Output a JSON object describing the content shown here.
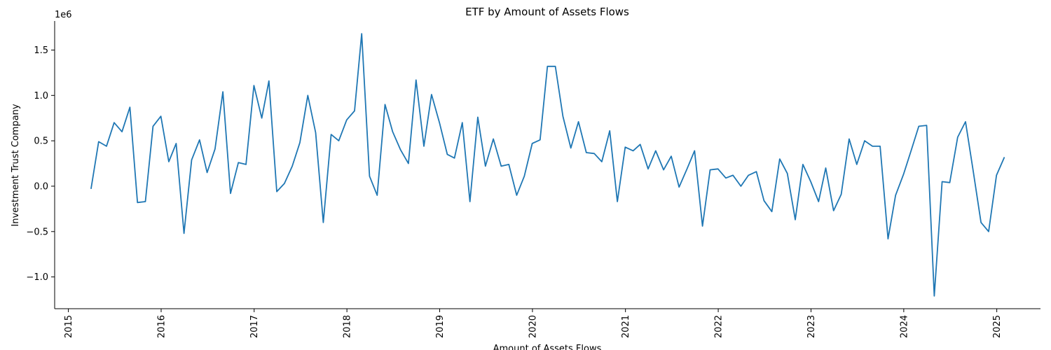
{
  "chart_data": {
    "type": "line",
    "title": "ETF by Amount of Assets Flows",
    "xlabel": "Amount of Assets Flows",
    "ylabel": "Investment Trust Company",
    "y_offset_label": "1e6",
    "x_ticks": [
      "2015",
      "2016",
      "2017",
      "2018",
      "2019",
      "2020",
      "2021",
      "2022",
      "2023",
      "2024",
      "2025"
    ],
    "y_ticks": [
      -1.0,
      -0.5,
      0.0,
      0.5,
      1.0,
      1.5
    ],
    "y_tick_labels": [
      "−1.0",
      "−0.5",
      "0.0",
      "0.5",
      "1.0",
      "1.5"
    ],
    "xlim": [
      "2014-11-08",
      "2025-06-22"
    ],
    "ylim": [
      -1.35,
      1.82
    ],
    "y_unit_multiplier": 1000000,
    "grid": false,
    "series": [
      {
        "color": "#1f77b4",
        "x": [
          "2015-03-31",
          "2015-04-30",
          "2015-05-31",
          "2015-06-30",
          "2015-07-31",
          "2015-08-31",
          "2015-09-30",
          "2015-10-31",
          "2015-11-30",
          "2015-12-31",
          "2016-01-31",
          "2016-02-29",
          "2016-03-31",
          "2016-04-30",
          "2016-05-31",
          "2016-06-30",
          "2016-07-31",
          "2016-08-31",
          "2016-09-30",
          "2016-10-31",
          "2016-11-30",
          "2016-12-31",
          "2017-01-31",
          "2017-02-28",
          "2017-03-31",
          "2017-04-30",
          "2017-05-31",
          "2017-06-30",
          "2017-07-31",
          "2017-08-31",
          "2017-09-30",
          "2017-10-31",
          "2017-11-30",
          "2017-12-31",
          "2018-01-31",
          "2018-02-28",
          "2018-03-31",
          "2018-04-30",
          "2018-05-31",
          "2018-06-30",
          "2018-07-31",
          "2018-08-31",
          "2018-09-30",
          "2018-10-31",
          "2018-11-30",
          "2018-12-31",
          "2019-01-31",
          "2019-02-28",
          "2019-03-31",
          "2019-04-30",
          "2019-05-31",
          "2019-06-30",
          "2019-07-31",
          "2019-08-31",
          "2019-09-30",
          "2019-10-31",
          "2019-11-30",
          "2019-12-31",
          "2020-01-31",
          "2020-02-29",
          "2020-03-31",
          "2020-04-30",
          "2020-05-31",
          "2020-06-30",
          "2020-07-31",
          "2020-08-31",
          "2020-09-30",
          "2020-10-31",
          "2020-11-30",
          "2020-12-31",
          "2021-01-31",
          "2021-02-28",
          "2021-03-31",
          "2021-04-30",
          "2021-05-31",
          "2021-06-30",
          "2021-07-31",
          "2021-08-31",
          "2021-09-30",
          "2021-10-31",
          "2021-11-30",
          "2021-12-31",
          "2022-01-31",
          "2022-02-28",
          "2022-03-31",
          "2022-04-30",
          "2022-05-31",
          "2022-06-30",
          "2022-07-31",
          "2022-08-31",
          "2022-09-30",
          "2022-10-31",
          "2022-11-30",
          "2022-12-31",
          "2023-01-31",
          "2023-02-28",
          "2023-03-31",
          "2023-04-30",
          "2023-05-31",
          "2023-06-30",
          "2023-07-31",
          "2023-08-31",
          "2023-09-30",
          "2023-10-31",
          "2023-11-30",
          "2023-12-31",
          "2024-01-31",
          "2024-02-29",
          "2024-03-31",
          "2024-04-30",
          "2024-05-31",
          "2024-06-30",
          "2024-07-31",
          "2024-08-31",
          "2024-09-30",
          "2024-10-31",
          "2024-11-30",
          "2024-12-31",
          "2025-01-31"
        ],
        "values": [
          -0.03,
          0.49,
          0.44,
          0.7,
          0.6,
          0.87,
          -0.18,
          -0.17,
          0.66,
          0.77,
          0.27,
          0.47,
          -0.52,
          0.29,
          0.51,
          0.15,
          0.41,
          1.04,
          -0.08,
          0.26,
          0.24,
          1.11,
          0.75,
          1.16,
          -0.06,
          0.03,
          0.22,
          0.48,
          1.0,
          0.59,
          -0.4,
          0.57,
          0.5,
          0.73,
          0.83,
          1.68,
          0.11,
          -0.1,
          0.9,
          0.6,
          0.4,
          0.25,
          1.17,
          0.44,
          1.01,
          0.7,
          0.35,
          0.31,
          0.7,
          -0.17,
          0.76,
          0.22,
          0.52,
          0.22,
          0.24,
          -0.1,
          0.11,
          0.47,
          0.51,
          1.32,
          1.32,
          0.77,
          0.42,
          0.71,
          0.37,
          0.36,
          0.27,
          0.61,
          -0.17,
          0.43,
          0.39,
          0.46,
          0.19,
          0.39,
          0.18,
          0.33,
          -0.01,
          0.19,
          0.39,
          -0.44,
          0.18,
          0.19,
          0.09,
          0.12,
          0.0,
          0.12,
          0.16,
          -0.16,
          -0.28,
          0.3,
          0.14,
          -0.37,
          0.24,
          0.05,
          -0.17,
          0.2,
          -0.27,
          -0.09,
          0.52,
          0.24,
          0.5,
          0.44,
          0.44,
          -0.58,
          -0.1,
          0.13,
          0.4,
          0.66,
          0.67,
          -1.21,
          0.05,
          0.04,
          0.54,
          0.71,
          0.17,
          -0.4,
          -0.5,
          0.12,
          0.32
        ]
      }
    ]
  }
}
